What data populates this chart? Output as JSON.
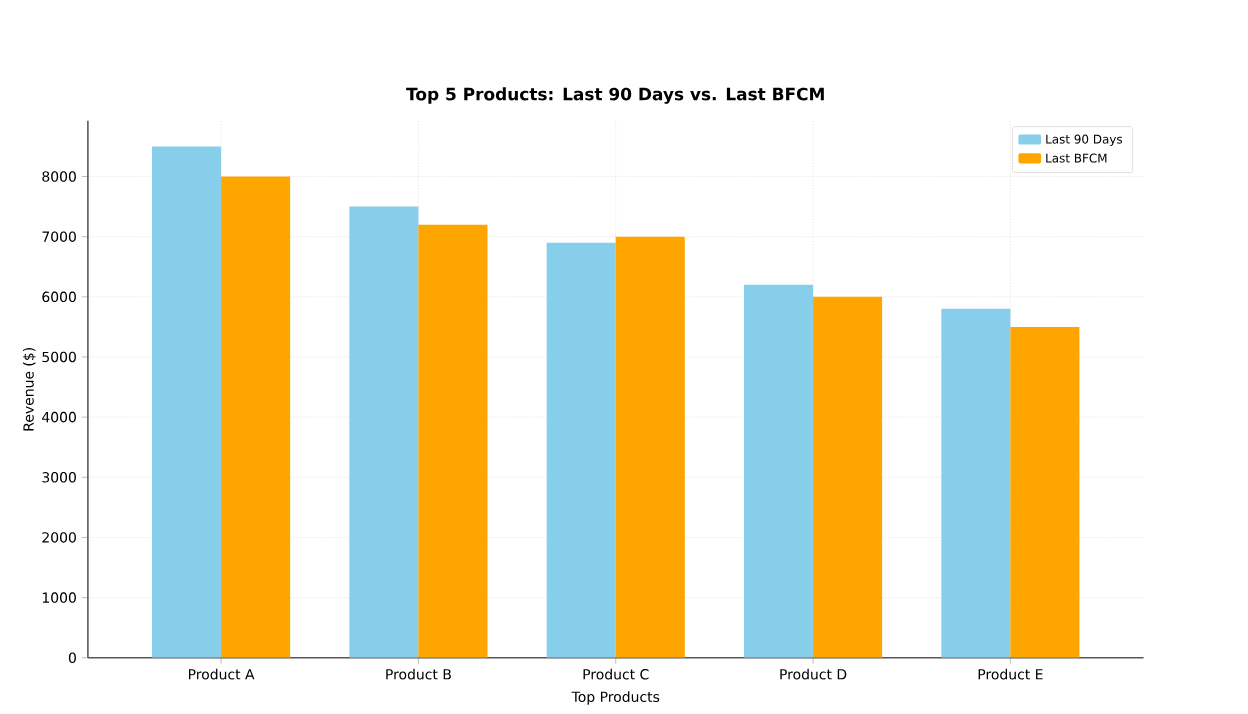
{
  "chart_data": {
    "type": "bar",
    "title": "Top 5 Products: Last 90 Days vs. Last BFCM",
    "xlabel": "Top Products",
    "ylabel": "Revenue ($)",
    "categories": [
      "Product A",
      "Product B",
      "Product C",
      "Product D",
      "Product E"
    ],
    "series": [
      {
        "name": "Last 90 Days",
        "color": "#87ceeb",
        "values": [
          8500,
          7500,
          6900,
          6200,
          5800
        ]
      },
      {
        "name": "Last BFCM",
        "color": "#ffa500",
        "values": [
          8000,
          7200,
          7000,
          6000,
          5500
        ]
      }
    ],
    "ylim": [
      0,
      8925
    ],
    "yticks": [
      0,
      1000,
      2000,
      3000,
      4000,
      5000,
      6000,
      7000,
      8000
    ],
    "grid": true,
    "legend": "top right"
  }
}
